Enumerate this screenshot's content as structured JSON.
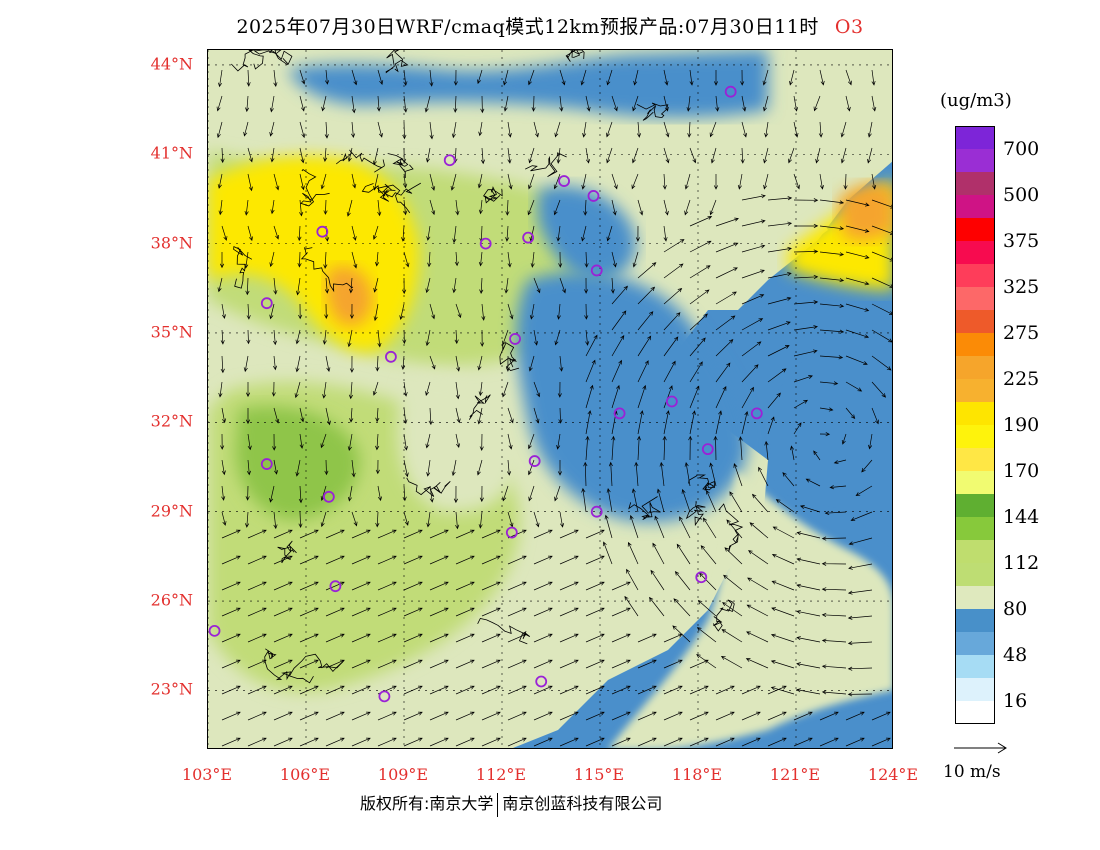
{
  "title": {
    "main": "2025年07月30日WRF/cmaq模式12km预报产品:07月30日11时",
    "species": "O3"
  },
  "map": {
    "lat_ticks": [
      "44°N",
      "41°N",
      "38°N",
      "35°N",
      "32°N",
      "29°N",
      "26°N",
      "23°N"
    ],
    "lon_ticks": [
      "103°E",
      "106°E",
      "109°E",
      "112°E",
      "115°E",
      "118°E",
      "121°E",
      "124°E"
    ],
    "lon_range": [
      103,
      124
    ],
    "lat_range": [
      21,
      44.5
    ],
    "colors": {
      "ocean": "#4a8fcb",
      "low_land": "#dde7bd",
      "mid_land": "#c1dc78",
      "high_land": "#8fc549",
      "hotspot_yellow": "#fde804",
      "hotspot_orange": "#f5a42d",
      "station_ring": "#9a22d6"
    },
    "stations_lonlat": [
      [
        119.0,
        43.1
      ],
      [
        110.4,
        40.8
      ],
      [
        113.9,
        40.1
      ],
      [
        114.8,
        39.6
      ],
      [
        106.5,
        38.4
      ],
      [
        111.5,
        38.0
      ],
      [
        112.8,
        38.2
      ],
      [
        114.9,
        37.1
      ],
      [
        104.8,
        36.0
      ],
      [
        108.6,
        34.2
      ],
      [
        112.4,
        34.8
      ],
      [
        115.6,
        32.3
      ],
      [
        117.2,
        32.7
      ],
      [
        119.8,
        32.3
      ],
      [
        118.3,
        31.1
      ],
      [
        104.8,
        30.6
      ],
      [
        113.0,
        30.7
      ],
      [
        106.7,
        29.5
      ],
      [
        114.9,
        29.0
      ],
      [
        112.3,
        28.3
      ],
      [
        118.1,
        26.8
      ],
      [
        106.9,
        26.5
      ],
      [
        103.2,
        25.0
      ],
      [
        108.4,
        22.8
      ],
      [
        113.2,
        23.3
      ]
    ]
  },
  "legend": {
    "unit": "(ug/m3)",
    "colors": [
      "#7d25d8",
      "#9a2ed4",
      "#b0306a",
      "#cf1385",
      "#fe0000",
      "#f70b4f",
      "#fe3d5a",
      "#fd6868",
      "#ee5a2a",
      "#fb8b06",
      "#f6a52b",
      "#f7b12f",
      "#fee500",
      "#fef30c",
      "#ffe745",
      "#f1fb71",
      "#5faf31",
      "#87c93b",
      "#bfdd6e",
      "#bedd73",
      "#dfe9be",
      "#4890c9",
      "#67a8da",
      "#a6dcf4",
      "#ddf2fc",
      "#ffffff"
    ],
    "labels": [
      "700",
      "500",
      "375",
      "325",
      "275",
      "225",
      "190",
      "170",
      "144",
      "112",
      "80",
      "48",
      "16"
    ]
  },
  "wind_reference": {
    "label": "10 m/s"
  },
  "footer": {
    "owner1": "版权所有:南京大学",
    "owner2": "南京创蓝科技有限公司"
  }
}
